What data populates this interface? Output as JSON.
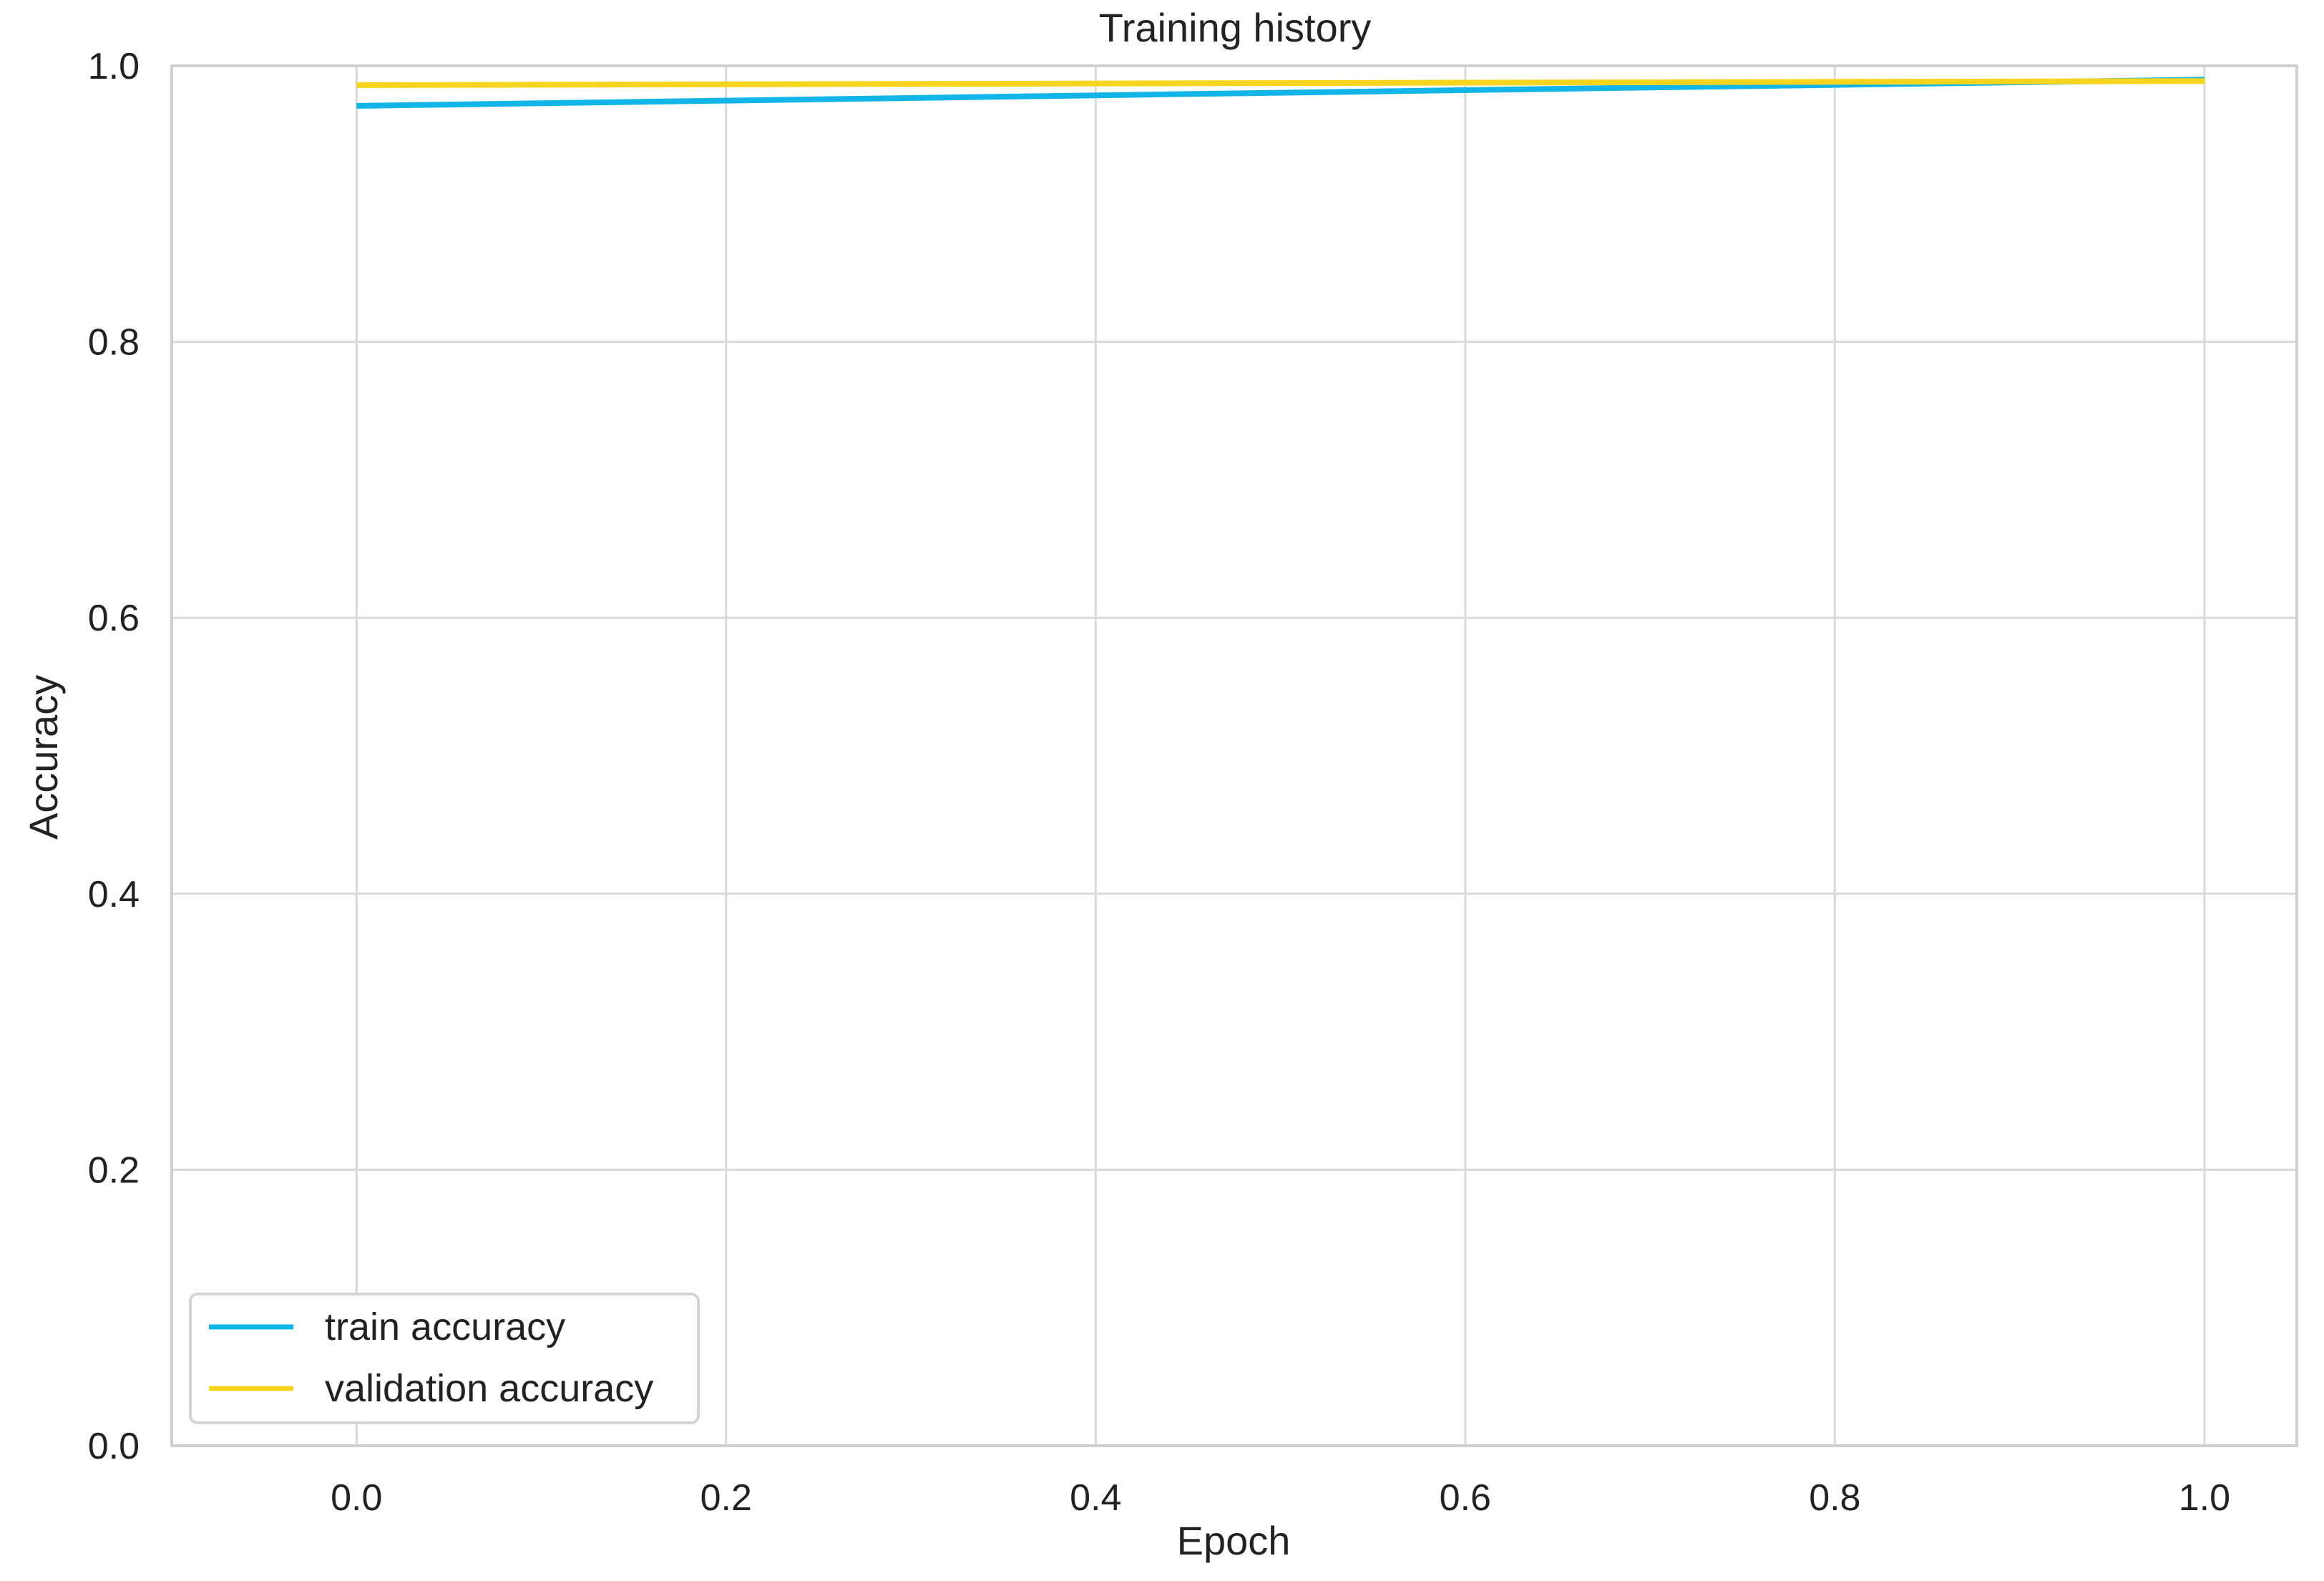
{
  "chart_data": {
    "type": "line",
    "title": "Training history",
    "xlabel": "Epoch",
    "ylabel": "Accuracy",
    "xlim": [
      -0.1,
      1.05
    ],
    "ylim": [
      0.0,
      1.0
    ],
    "xticks": [
      0.0,
      0.2,
      0.4,
      0.6,
      0.8,
      1.0
    ],
    "xtick_labels": [
      "0.0",
      "0.2",
      "0.4",
      "0.6",
      "0.8",
      "1.0"
    ],
    "yticks": [
      0.0,
      0.2,
      0.4,
      0.6,
      0.8,
      1.0
    ],
    "ytick_labels": [
      "0.0",
      "0.2",
      "0.4",
      "0.6",
      "0.8",
      "1.0"
    ],
    "grid": true,
    "legend_position": "lower-left",
    "series": [
      {
        "name": "train accuracy",
        "color": "#12b5e8",
        "x": [
          0.0,
          1.0
        ],
        "y": [
          0.971,
          0.99
        ]
      },
      {
        "name": "validation accuracy",
        "color": "#f7d51e",
        "x": [
          0.0,
          1.0
        ],
        "y": [
          0.986,
          0.989
        ]
      }
    ]
  }
}
